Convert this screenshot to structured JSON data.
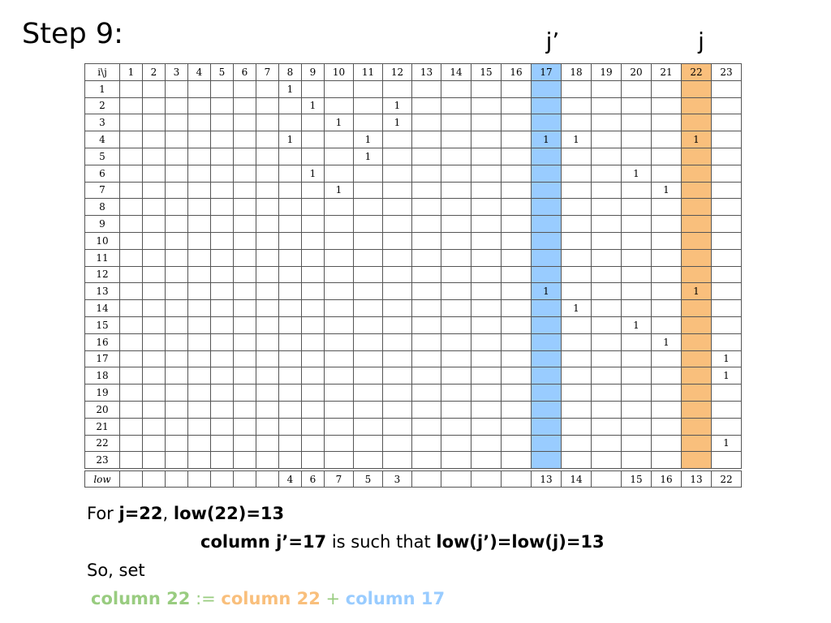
{
  "title": "Step 9:",
  "markers": {
    "j_prime": "j’",
    "j": "j"
  },
  "highlight": {
    "j_prime_col": 17,
    "j_col": 22,
    "blue": "#99ccff",
    "orange": "#f9bf7c",
    "green": "#99cc80"
  },
  "matrix": {
    "corner": "i\\j",
    "col_headers": [
      "1",
      "2",
      "3",
      "4",
      "5",
      "6",
      "7",
      "8",
      "9",
      "10",
      "11",
      "12",
      "13",
      "14",
      "15",
      "16",
      "17",
      "18",
      "19",
      "20",
      "21",
      "22",
      "23"
    ],
    "row_headers": [
      "1",
      "2",
      "3",
      "4",
      "5",
      "6",
      "7",
      "8",
      "9",
      "10",
      "11",
      "12",
      "13",
      "14",
      "15",
      "16",
      "17",
      "18",
      "19",
      "20",
      "21",
      "22",
      "23"
    ],
    "ones": {
      "1": [
        8
      ],
      "2": [
        9,
        12
      ],
      "3": [
        10,
        12
      ],
      "4": [
        8,
        11,
        17,
        18,
        22
      ],
      "5": [
        11
      ],
      "6": [
        9,
        20
      ],
      "7": [
        10,
        21
      ],
      "13": [
        17,
        22
      ],
      "14": [
        18
      ],
      "15": [
        20
      ],
      "16": [
        21
      ],
      "17": [
        23
      ],
      "18": [
        23
      ],
      "22": [
        23
      ]
    },
    "one_value": "1"
  },
  "low_row": {
    "label": "low",
    "values": [
      "",
      "",
      "",
      "",
      "",
      "",
      "",
      "4",
      "6",
      "7",
      "5",
      "3",
      "",
      "",
      "",
      "",
      "13",
      "14",
      "",
      "15",
      "16",
      "13",
      "22"
    ]
  },
  "explanation": {
    "line1": {
      "prefix": "For ",
      "j_eq": "j=22",
      "sep": ", ",
      "low_eq": "low(22)=13"
    },
    "line2": {
      "col": "column j’=17",
      "mid": " is such that ",
      "cond": "low(j’)=low(j)=13"
    },
    "line3": "So, set",
    "line4": {
      "target": "column 22",
      "assign": " := ",
      "src1": "column 22",
      "plus": " + ",
      "src2": "column 17"
    }
  }
}
